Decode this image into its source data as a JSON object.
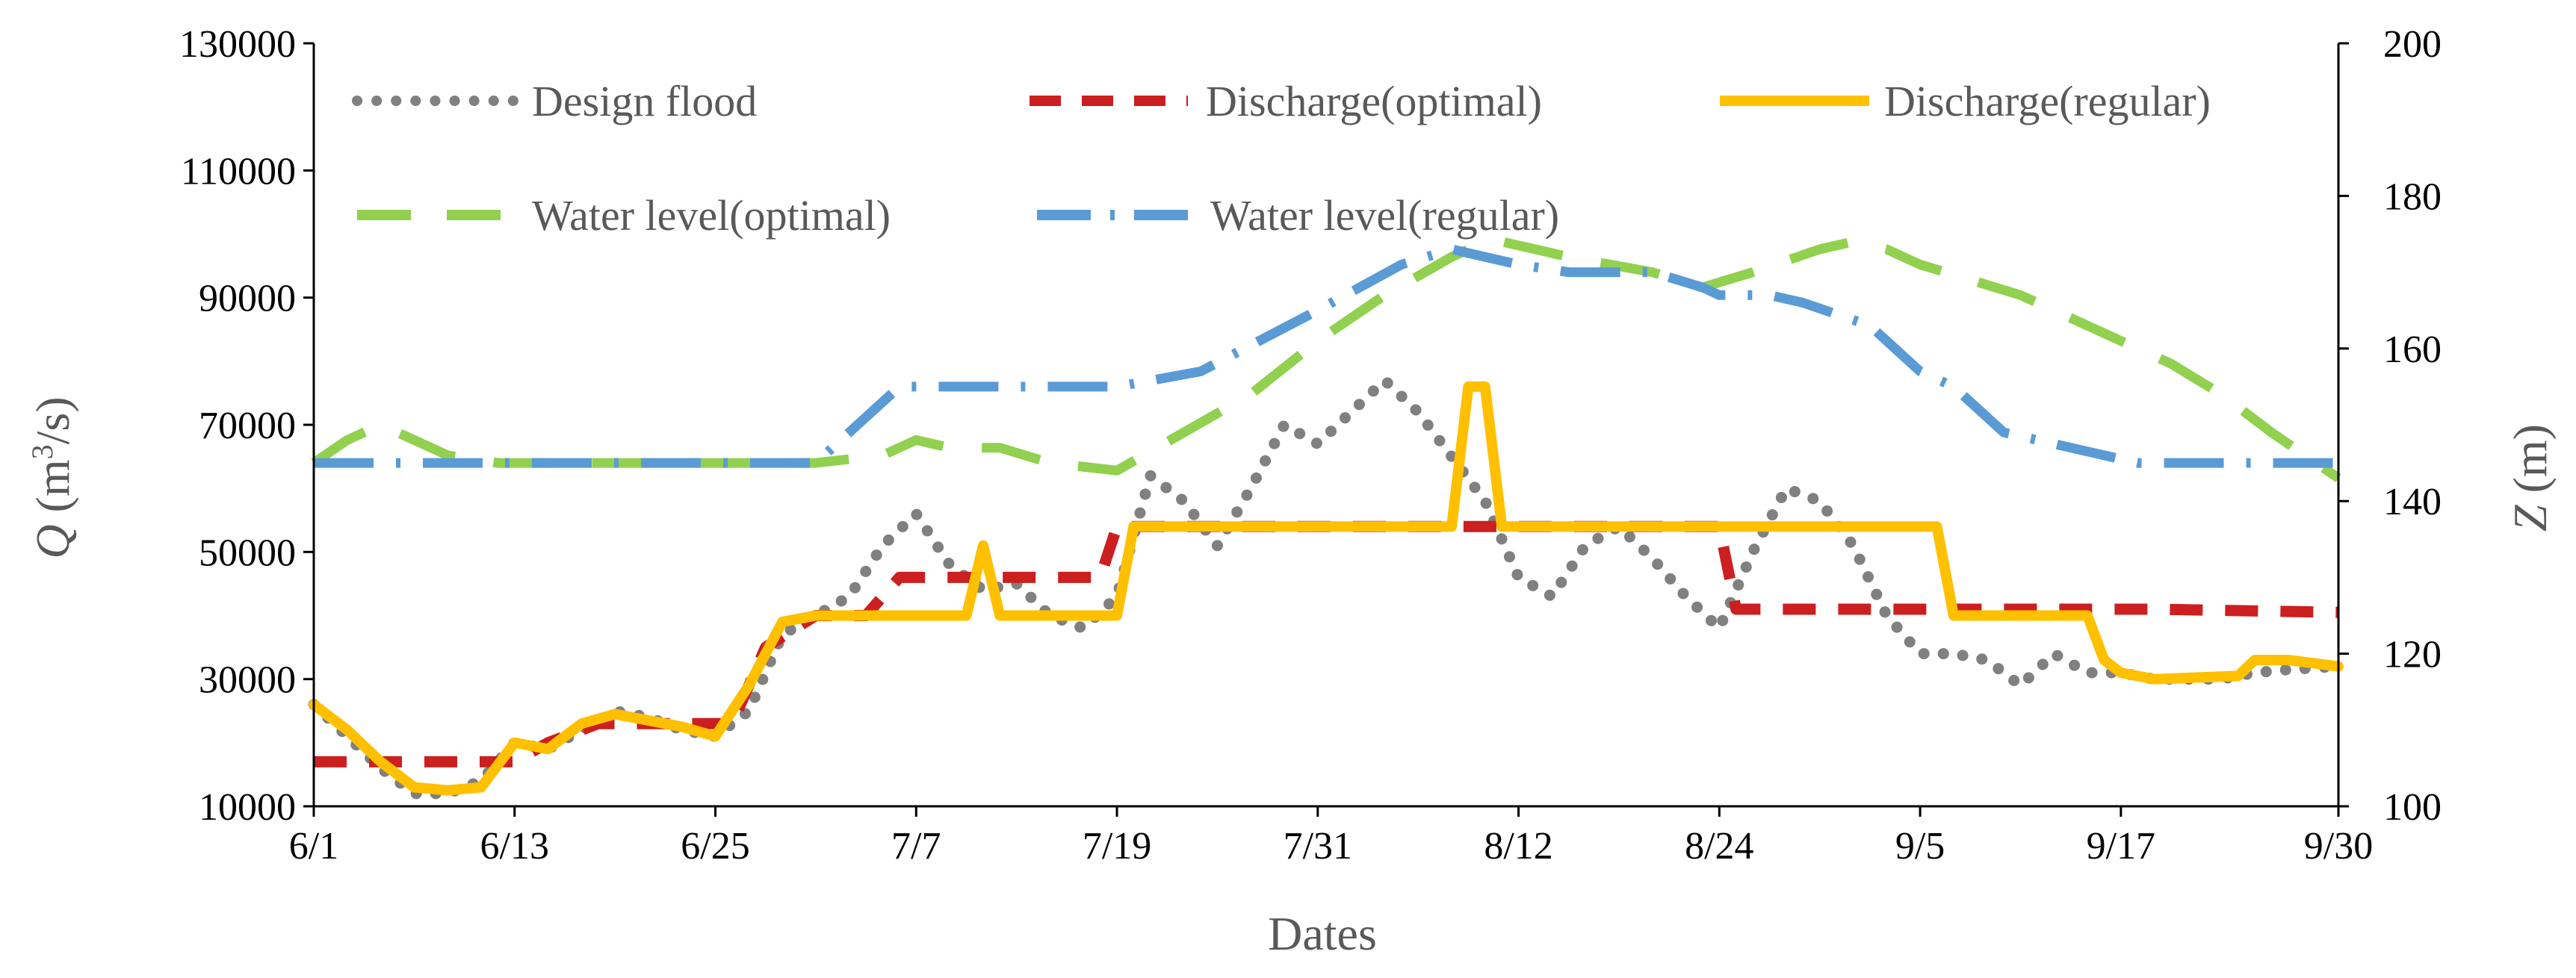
{
  "chart_data": {
    "type": "line",
    "title": "",
    "xlabel": "Dates",
    "ylabel_left": {
      "symbol": "Q",
      "text": " (m",
      "sup": "3",
      "tail": "/s)"
    },
    "ylabel_right": {
      "symbol": "Z",
      "text": " (m)"
    },
    "x_range": [
      0,
      121
    ],
    "x_ticks": [
      {
        "day": 0,
        "label": "6/1"
      },
      {
        "day": 12,
        "label": "6/13"
      },
      {
        "day": 24,
        "label": "6/25"
      },
      {
        "day": 36,
        "label": "7/7"
      },
      {
        "day": 48,
        "label": "7/19"
      },
      {
        "day": 60,
        "label": "7/31"
      },
      {
        "day": 72,
        "label": "8/12"
      },
      {
        "day": 84,
        "label": "8/24"
      },
      {
        "day": 96,
        "label": "9/5"
      },
      {
        "day": 108,
        "label": "9/17"
      },
      {
        "day": 121,
        "label": "9/30"
      }
    ],
    "ylim_left": [
      10000,
      130000
    ],
    "y_ticks_left": [
      10000,
      30000,
      50000,
      70000,
      90000,
      110000,
      130000
    ],
    "ylim_right": [
      100,
      200
    ],
    "y_ticks_right": [
      100,
      120,
      140,
      160,
      180,
      200
    ],
    "legend": [
      "Design flood",
      "Discharge(optimal)",
      "Discharge(regular)",
      "Water level(optimal)",
      "Water level(regular)"
    ],
    "series": [
      {
        "name": "Design flood",
        "axis": "left",
        "color": "#808080",
        "style": "dotted",
        "x": [
          0,
          2,
          4,
          6,
          8,
          10,
          12,
          14,
          16,
          18,
          20,
          22,
          24,
          26,
          28,
          30,
          32,
          34,
          36,
          38,
          40,
          42,
          44,
          46,
          48,
          50,
          52,
          54,
          56,
          58,
          60,
          62,
          64,
          66,
          68,
          70,
          72,
          74,
          76,
          78,
          80,
          82,
          84,
          86,
          88,
          90,
          92,
          94,
          96,
          98,
          100,
          102,
          104,
          106,
          108,
          110,
          112,
          114,
          116,
          118,
          121
        ],
        "values": [
          26000,
          21000,
          16000,
          12000,
          12000,
          14000,
          20000,
          19000,
          22000,
          25000,
          24000,
          22000,
          21000,
          25000,
          37000,
          40000,
          43000,
          51000,
          56000,
          48000,
          44000,
          45000,
          40000,
          38000,
          43000,
          62000,
          58000,
          51000,
          60000,
          70000,
          67000,
          72000,
          77000,
          72000,
          65000,
          58000,
          46000,
          43000,
          51000,
          54000,
          49000,
          43000,
          38000,
          50000,
          60000,
          58000,
          51000,
          40000,
          34000,
          34000,
          33000,
          29000,
          34000,
          31000,
          31000,
          30000,
          30000,
          30000,
          31000,
          31500,
          32000
        ]
      },
      {
        "name": "Discharge(optimal)",
        "axis": "left",
        "color": "#cc1f1f",
        "style": "dashed",
        "x": [
          0,
          5,
          10,
          12,
          14,
          17,
          20,
          25,
          27,
          30,
          33,
          35,
          37,
          41,
          43,
          47,
          48,
          50,
          55,
          59,
          63,
          67,
          70,
          73,
          80,
          84,
          85,
          88,
          96,
          110,
          121
        ],
        "values": [
          17000,
          17000,
          17000,
          17000,
          20000,
          23000,
          23000,
          23000,
          35000,
          40000,
          40000,
          46000,
          46000,
          46000,
          46000,
          46000,
          54000,
          54000,
          54000,
          54000,
          54000,
          54000,
          54000,
          54000,
          54000,
          54000,
          41000,
          41000,
          41000,
          41000,
          40500
        ]
      },
      {
        "name": "Discharge(regular)",
        "axis": "left",
        "color": "#ffc000",
        "style": "solid",
        "x": [
          0,
          2,
          4,
          6,
          8,
          10,
          12,
          14,
          16,
          18,
          20,
          22,
          24,
          26,
          28,
          30,
          34,
          39,
          40,
          41,
          42,
          46,
          48,
          49,
          55,
          60,
          66,
          68,
          69,
          70,
          71,
          72,
          75,
          80,
          90,
          97,
          98,
          99,
          106,
          107,
          108,
          110,
          115,
          116,
          118,
          121
        ],
        "values": [
          26000,
          22000,
          17000,
          13000,
          12500,
          13000,
          20000,
          19000,
          23000,
          24500,
          23500,
          22500,
          21000,
          29000,
          39000,
          40000,
          40000,
          40000,
          51000,
          40000,
          40000,
          40000,
          40000,
          54000,
          54000,
          54000,
          54000,
          54000,
          76000,
          76000,
          54000,
          54000,
          54000,
          54000,
          54000,
          54000,
          40000,
          40000,
          40000,
          33000,
          31000,
          30000,
          30500,
          33000,
          33000,
          32000
        ]
      },
      {
        "name": "Water level(optimal)",
        "axis": "right",
        "color": "#92d050",
        "style": "longdash",
        "x": [
          0,
          2,
          4,
          6,
          8,
          11,
          14,
          20,
          26,
          30,
          34,
          36,
          38,
          41,
          44,
          48,
          52,
          56,
          60,
          64,
          68,
          70,
          71,
          73,
          75,
          80,
          83,
          86,
          90,
          92,
          94,
          96,
          99,
          102,
          105,
          108,
          111,
          114,
          117,
          121
        ],
        "values": [
          145,
          148,
          150,
          148,
          146,
          145,
          145,
          145,
          145,
          145,
          146,
          148,
          147,
          147,
          145,
          144,
          149,
          154,
          161,
          167,
          172,
          174,
          174,
          173,
          172,
          170,
          168,
          170,
          173,
          174,
          173,
          171,
          169,
          167,
          164,
          161,
          158,
          154,
          149,
          143
        ]
      },
      {
        "name": "Water level(regular)",
        "axis": "right",
        "color": "#5b9bd5",
        "style": "dashdot",
        "x": [
          0,
          6,
          10,
          20,
          30,
          35,
          37,
          42,
          48,
          53,
          60,
          65,
          68,
          72,
          75,
          80,
          83,
          84,
          87,
          89,
          93,
          96,
          98,
          101,
          109,
          115,
          121
        ],
        "values": [
          145,
          145,
          145,
          145,
          145,
          155,
          155,
          155,
          155,
          157,
          165,
          171,
          173,
          171,
          170,
          170,
          168,
          167,
          167,
          166,
          163,
          157,
          155,
          149,
          145,
          145,
          145
        ]
      }
    ]
  }
}
